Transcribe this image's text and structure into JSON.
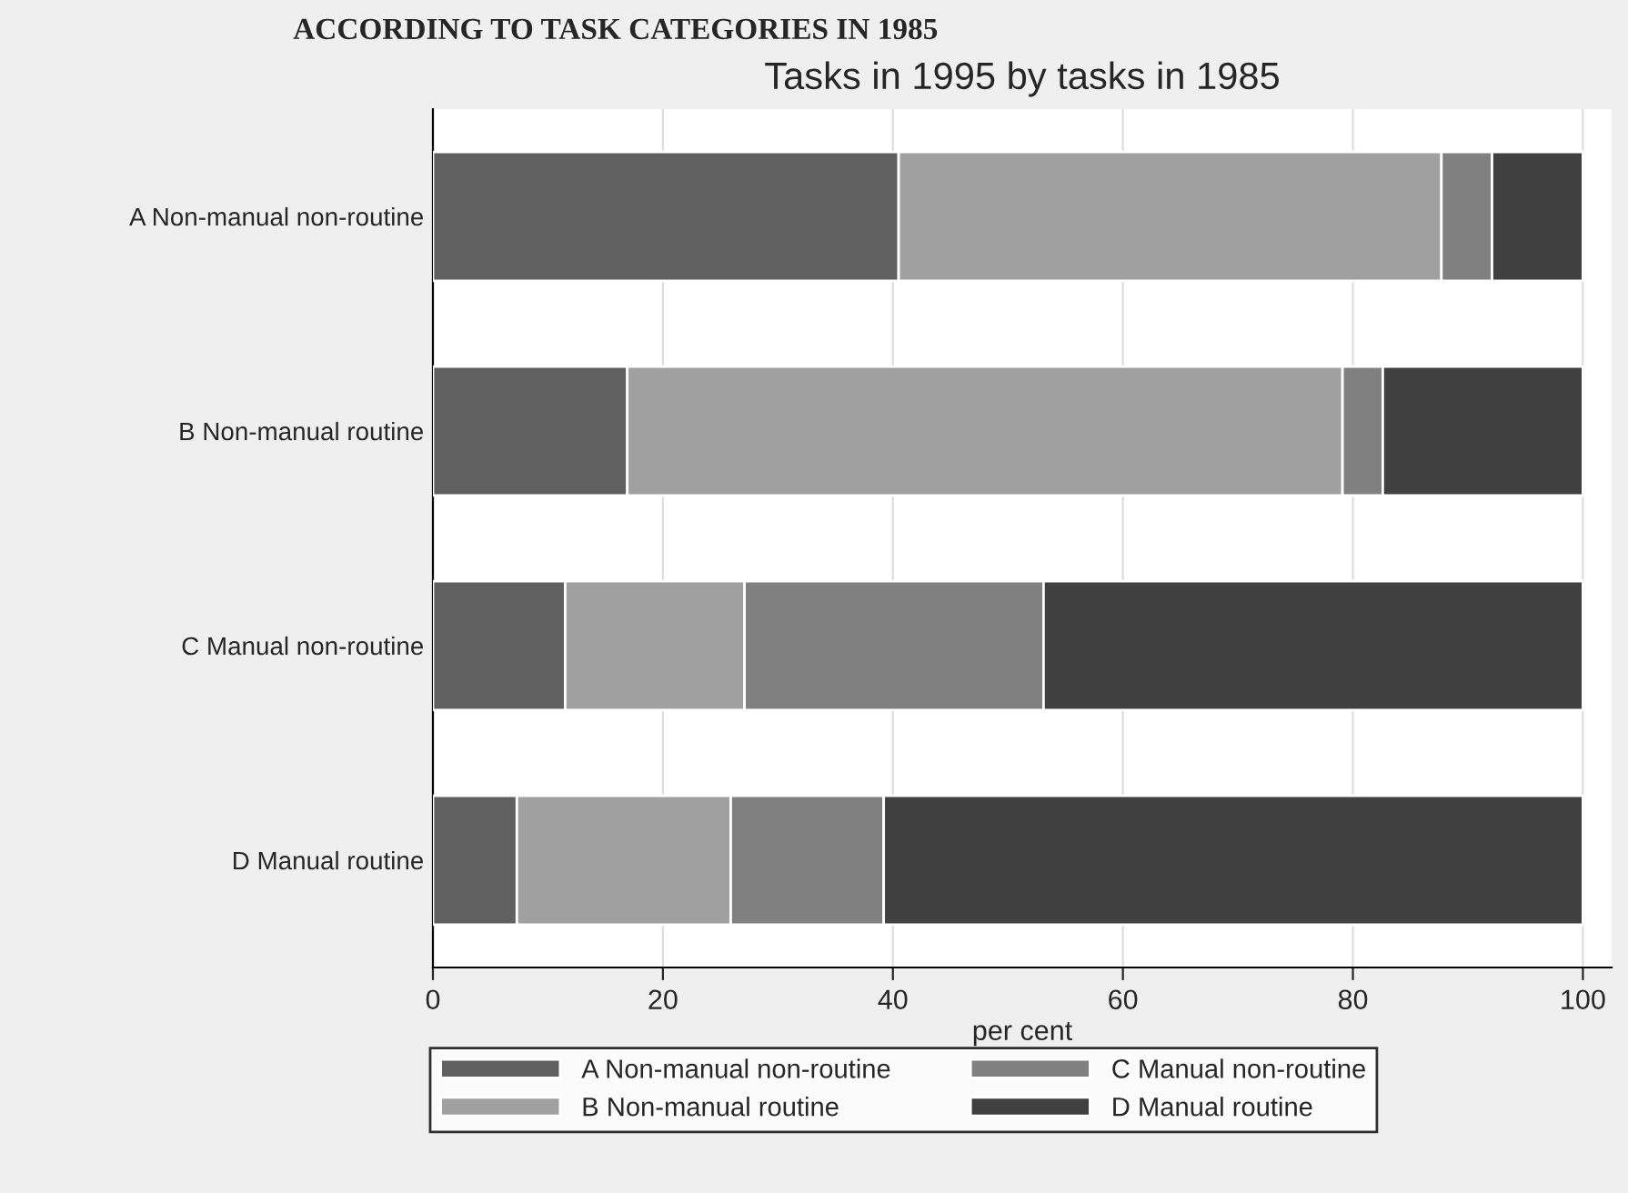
{
  "chart_data": {
    "type": "bar",
    "orientation": "horizontal",
    "stacked": true,
    "title": "Tasks in 1995 by tasks in 1985",
    "xlabel": "per cent",
    "annotations": [
      "ACCORDING TO TASK CATEGORIES IN 1985"
    ],
    "categories": [
      "A Non-manual non-routine",
      "B Non-manual routine",
      "C Manual non-routine",
      "D Manual routine"
    ],
    "series": [
      {
        "name": "A Non-manual non-routine",
        "color": "#606060",
        "values": [
          40.5,
          16.9,
          11.5,
          7.3
        ]
      },
      {
        "name": "B Non-manual routine",
        "color": "#a0a0a0",
        "values": [
          47.2,
          62.2,
          15.6,
          18.6
        ]
      },
      {
        "name": "C Manual non-routine",
        "color": "#808080",
        "values": [
          4.4,
          3.5,
          26.0,
          13.3
        ]
      },
      {
        "name": "D Manual routine",
        "color": "#404040",
        "values": [
          7.9,
          17.4,
          46.9,
          60.8
        ]
      }
    ],
    "xlim": [
      0,
      102.5
    ],
    "xticks": [
      0,
      20,
      40,
      60,
      80,
      100
    ],
    "grid": "x",
    "legend": "bottom"
  }
}
